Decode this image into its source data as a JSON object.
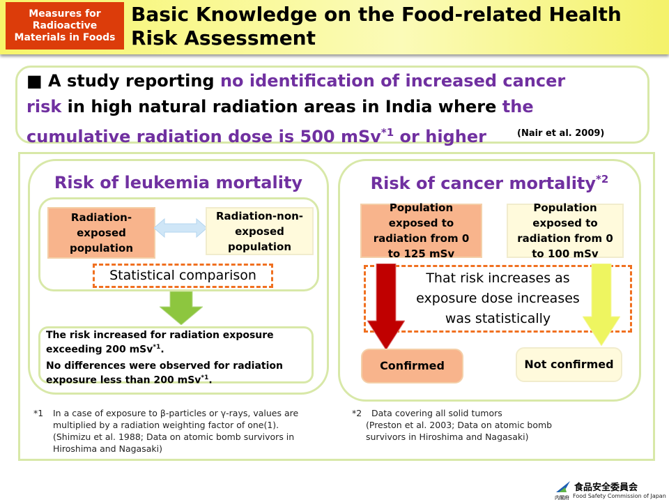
{
  "header": {
    "badge": "Measures for Radioactive Materials in Foods",
    "title": "Basic Knowledge on the Food-related Health Risk Assessment"
  },
  "summary": {
    "bullet": "■",
    "t1": "A study reporting ",
    "h1": "no identification of increased cancer risk",
    "t2": " in high natural radiation areas in India where ",
    "h2": "the cumulative radiation dose is 500 mSv",
    "sup": "*1",
    "h3": " or higher",
    "cite": "(Nair et al. 2009)"
  },
  "left": {
    "title": "Risk of leukemia mortality",
    "exposed": "Radiation-exposed population",
    "nonexposed": "Radiation-non-exposed population",
    "comparison": "Statistical comparison",
    "result1": "The risk increased for radiation exposure exceeding 200 mSv",
    "result1_sup": "*1",
    "result1_end": ".",
    "result2": "No differences were observed for radiation exposure less than 200 mSv",
    "result2_sup": "*1",
    "result2_end": "."
  },
  "right": {
    "title": "Risk of cancer mortality",
    "title_sup": "*2",
    "pop1": "Population exposed to radiation from 0 to 125 mSv",
    "pop2": "Population exposed to radiation from 0 to 100 mSv",
    "statement": "That risk increases as exposure dose increases was statistically",
    "confirmed": "Confirmed",
    "not_confirmed": "Not confirmed"
  },
  "footnotes": {
    "n1_mark": "*1",
    "n1_text": "In a case of exposure to β-particles or γ-rays, values are multiplied by a radiation weighting factor of one(1).",
    "n1_cite": "(Shimizu et al. 1988; Data on atomic bomb survivors in Hiroshima and Nagasaki)",
    "n2_mark": "*2",
    "n2_text": "Data covering all solid tumors",
    "n2_cite": "(Preston et al. 2003; Data on atomic bomb survivors in Hiroshima and Nagasaki)"
  },
  "logo": {
    "name": "食品安全委員会",
    "sub": "Food Safety Commission of Japan",
    "gov": "内閣府"
  },
  "colors": {
    "accent": "#7030a0",
    "badge": "#dc3c0a",
    "orange": "#f8b48c",
    "cream": "#fffadc"
  }
}
